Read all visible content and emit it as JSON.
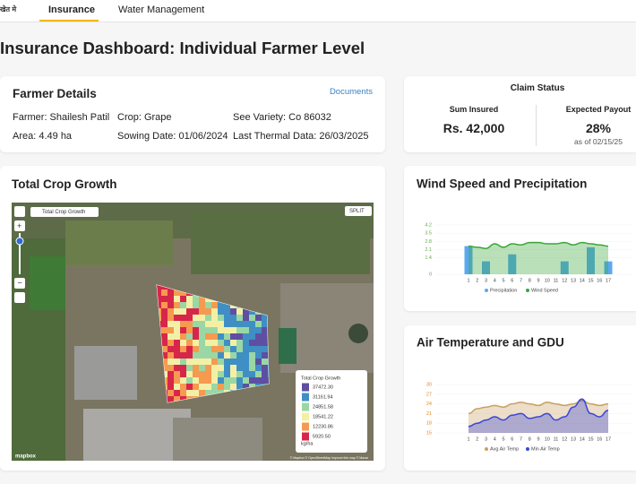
{
  "nav": {
    "logo": "खेत मे",
    "tabs": [
      "Insurance",
      "Water Management"
    ]
  },
  "header": {
    "title": "Insurance Dashboard: Individual Farmer Level"
  },
  "farmer_details": {
    "title": "Farmer Details",
    "link": "Documents",
    "fields": [
      "Farmer: Shailesh Patil",
      "Crop: Grape",
      "See Variety: Co 86032",
      "Area: 4.49 ha",
      "Sowing Date: 01/06/2024",
      "Last Thermal Data: 26/03/2025"
    ]
  },
  "claim_status": {
    "title": "Claim Status",
    "sum_insured": {
      "label": "Sum Insured",
      "value": "Rs. 42,000"
    },
    "expected_payout": {
      "label": "Expected Payout",
      "value": "28%",
      "note": "as of 02/15/25"
    }
  },
  "crop_growth": {
    "title": "Total Crop Growth",
    "layer": "Total Crop Growth",
    "split": "SPLIT",
    "legend": {
      "title": "Total Crop Growth",
      "unit": "kg/ha",
      "items": [
        {
          "label": "37472.30",
          "color": "#5e4fa2"
        },
        {
          "label": "31161.94",
          "color": "#3f8fc4"
        },
        {
          "label": "24851.58",
          "color": "#9ad7a4"
        },
        {
          "label": "18541.22",
          "color": "#f3f0a6"
        },
        {
          "label": "12230.86",
          "color": "#f59a4f"
        },
        {
          "label": "5920.50",
          "color": "#d7264a"
        }
      ]
    },
    "attribution": "© Mapbox © OpenStreetMap Improve this map © Maxar",
    "logo": "mapbox"
  },
  "chart_data": [
    {
      "type": "combo",
      "title": "Wind Speed and Precipitation",
      "categories": [
        "1",
        "2",
        "3",
        "4",
        "5",
        "6",
        "7",
        "8",
        "9",
        "10",
        "11",
        "12",
        "13",
        "14",
        "15",
        "16",
        "17"
      ],
      "series": [
        {
          "name": "Precipitation",
          "type": "bar",
          "color": "#5aa9f0",
          "values": [
            2.4,
            0,
            1.1,
            0,
            0,
            1.7,
            0,
            0,
            0,
            0,
            0,
            1.1,
            0,
            0,
            2.3,
            0,
            1.1
          ]
        },
        {
          "name": "Wind Speed",
          "type": "area",
          "color": "#3aa63a",
          "values": [
            2.4,
            2.3,
            2.2,
            2.6,
            2.3,
            2.6,
            2.5,
            2.7,
            2.7,
            2.6,
            2.6,
            2.7,
            2.5,
            2.7,
            2.6,
            2.5,
            2.4
          ]
        }
      ],
      "ylim": [
        0,
        4.2
      ],
      "yticks": [
        0,
        1.4,
        2.1,
        2.8,
        3.5,
        4.2
      ]
    },
    {
      "type": "area",
      "title": "Air Temperature and GDU",
      "categories": [
        "1",
        "2",
        "3",
        "4",
        "5",
        "6",
        "7",
        "8",
        "9",
        "10",
        "11",
        "12",
        "13",
        "14",
        "15",
        "16",
        "17"
      ],
      "series": [
        {
          "name": "Avg Air Temp",
          "type": "area",
          "color": "#c9a063",
          "values": [
            21,
            22.5,
            23,
            23.5,
            23,
            24,
            24.5,
            24,
            23.5,
            24.5,
            24,
            23.5,
            24,
            25,
            24,
            23.5,
            24
          ]
        },
        {
          "name": "Min Air Temp",
          "type": "area",
          "color": "#3b47d6",
          "values": [
            17,
            18,
            19,
            20,
            19,
            20.5,
            21,
            19.5,
            20,
            21,
            19,
            20,
            23,
            25.5,
            21,
            20,
            22
          ]
        }
      ],
      "ylim": [
        15,
        30
      ],
      "yticks": [
        15,
        18,
        21,
        24,
        27,
        30
      ]
    }
  ]
}
